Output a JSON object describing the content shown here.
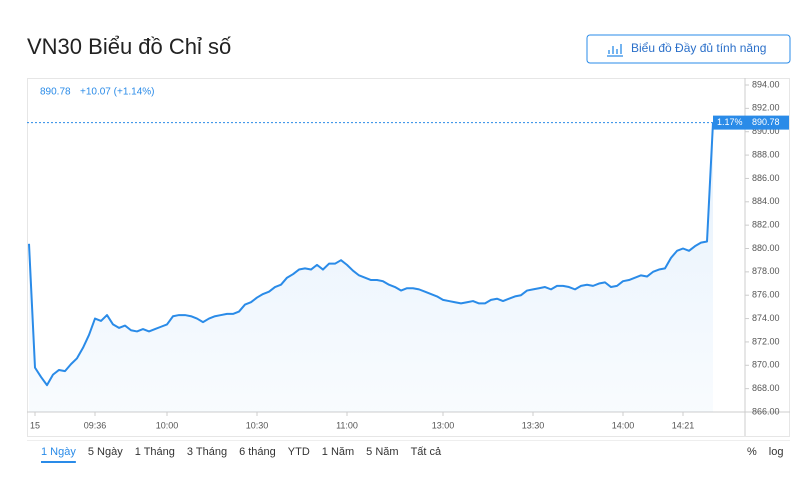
{
  "chart_data": {
    "type": "line",
    "title": "VN30 Biểu đồ Chỉ số",
    "button": "Biểu đồ Đầy đủ tính năng",
    "change": "+10.07 (+1.14%)",
    "last_change_pct": "1.17%",
    "categories": [
      null,
      "15",
      null,
      null,
      null,
      null,
      null,
      null,
      null,
      null,
      null,
      "09:36",
      null,
      null,
      null,
      null,
      null,
      null,
      null,
      null,
      null,
      null,
      null,
      "10:00",
      null,
      null,
      null,
      null,
      null,
      null,
      null,
      null,
      null,
      null,
      null,
      null,
      null,
      null,
      "10:30",
      null,
      null,
      null,
      null,
      null,
      null,
      null,
      null,
      null,
      null,
      null,
      null,
      null,
      null,
      "11:00",
      null,
      null,
      null,
      null,
      null,
      null,
      null,
      null,
      null,
      null,
      null,
      null,
      null,
      null,
      null,
      "13:00",
      null,
      null,
      null,
      null,
      null,
      null,
      null,
      null,
      null,
      null,
      null,
      null,
      null,
      null,
      "13:30",
      null,
      null,
      null,
      null,
      null,
      null,
      null,
      null,
      null,
      null,
      null,
      null,
      null,
      null,
      "14:00",
      null,
      null,
      null,
      null,
      null,
      null,
      null,
      null,
      null,
      "14:21",
      null,
      null,
      null,
      null,
      null
    ],
    "series": [
      {
        "name": "VN30",
        "color": "#2a8be8",
        "values": [
          880.4,
          869.8,
          869.0,
          868.3,
          869.2,
          869.6,
          869.5,
          870.1,
          870.6,
          871.5,
          872.6,
          874.0,
          873.8,
          874.3,
          873.5,
          873.2,
          873.4,
          873.0,
          872.9,
          873.1,
          872.9,
          873.1,
          873.3,
          873.5,
          874.2,
          874.3,
          874.3,
          874.2,
          874.0,
          873.7,
          874.0,
          874.2,
          874.3,
          874.4,
          874.4,
          874.6,
          875.2,
          875.4,
          875.8,
          876.1,
          876.3,
          876.7,
          876.9,
          877.5,
          877.8,
          878.2,
          878.3,
          878.2,
          878.6,
          878.2,
          878.7,
          878.7,
          879.0,
          878.6,
          878.1,
          877.7,
          877.5,
          877.3,
          877.3,
          877.2,
          876.9,
          876.7,
          876.4,
          876.6,
          876.6,
          876.5,
          876.3,
          876.1,
          875.9,
          875.6,
          875.5,
          875.4,
          875.3,
          875.4,
          875.5,
          875.3,
          875.3,
          875.6,
          875.7,
          875.5,
          875.7,
          875.9,
          876.0,
          876.4,
          876.5,
          876.6,
          876.7,
          876.5,
          876.8,
          876.8,
          876.7,
          876.5,
          876.8,
          876.9,
          876.8,
          877.0,
          877.1,
          876.7,
          876.8,
          877.2,
          877.3,
          877.5,
          877.7,
          877.6,
          878.0,
          878.2,
          878.3,
          879.2,
          879.8,
          880.0,
          879.8,
          880.2,
          880.5,
          880.6,
          890.78
        ]
      }
    ],
    "ylim": [
      866,
      894.6
    ],
    "yticks": [
      {
        "value": 866,
        "label": "866.00"
      },
      {
        "value": 868,
        "label": "868.00"
      },
      {
        "value": 870,
        "label": "870.00"
      },
      {
        "value": 872,
        "label": "872.00"
      },
      {
        "value": 874,
        "label": "874.00"
      },
      {
        "value": 876,
        "label": "876.00"
      },
      {
        "value": 878,
        "label": "878.00"
      },
      {
        "value": 880,
        "label": "880.00"
      },
      {
        "value": 882,
        "label": "882.00"
      },
      {
        "value": 884,
        "label": "884.00"
      },
      {
        "value": 886,
        "label": "886.00"
      },
      {
        "value": 888,
        "label": "888.00"
      },
      {
        "value": 890,
        "label": "890.00"
      },
      {
        "value": 892,
        "label": "892.00"
      },
      {
        "value": 894,
        "label": "894.00"
      }
    ],
    "ranges": [
      "1 Ngày",
      "5 Ngày",
      "1 Tháng",
      "3 Tháng",
      "6 tháng",
      "YTD",
      "1 Năm",
      "5 Năm",
      "Tất cả"
    ],
    "scale_options": [
      "%",
      "log"
    ]
  }
}
